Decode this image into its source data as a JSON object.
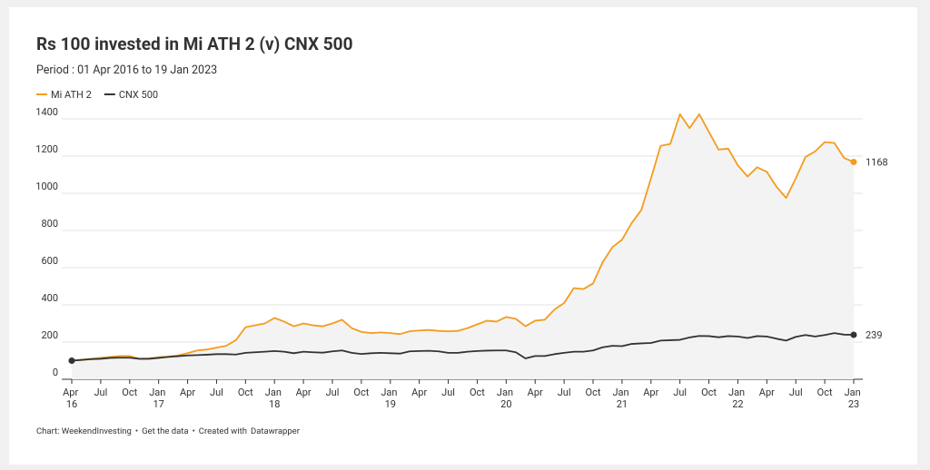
{
  "chart_data": {
    "type": "line",
    "title": "Rs 100 invested in Mi ATH 2 (v) CNX 500",
    "subtitle": "Period : 01 Apr 2016 to 19 Jan 2023",
    "legend": "top-left",
    "grid": true,
    "area_fill": "#f3f3f3",
    "x": [
      "2016-04",
      "2016-05",
      "2016-06",
      "2016-07",
      "2016-08",
      "2016-09",
      "2016-10",
      "2016-11",
      "2016-12",
      "2017-01",
      "2017-02",
      "2017-03",
      "2017-04",
      "2017-05",
      "2017-06",
      "2017-07",
      "2017-08",
      "2017-09",
      "2017-10",
      "2017-11",
      "2017-12",
      "2018-01",
      "2018-02",
      "2018-03",
      "2018-04",
      "2018-05",
      "2018-06",
      "2018-07",
      "2018-08",
      "2018-09",
      "2018-10",
      "2018-11",
      "2018-12",
      "2019-01",
      "2019-02",
      "2019-03",
      "2019-04",
      "2019-05",
      "2019-06",
      "2019-07",
      "2019-08",
      "2019-09",
      "2019-10",
      "2019-11",
      "2019-12",
      "2020-01",
      "2020-02",
      "2020-03",
      "2020-04",
      "2020-05",
      "2020-06",
      "2020-07",
      "2020-08",
      "2020-09",
      "2020-10",
      "2020-11",
      "2020-12",
      "2021-01",
      "2021-02",
      "2021-03",
      "2021-04",
      "2021-05",
      "2021-06",
      "2021-07",
      "2021-08",
      "2021-09",
      "2021-10",
      "2021-11",
      "2021-12",
      "2022-01",
      "2022-02",
      "2022-03",
      "2022-04",
      "2022-05",
      "2022-06",
      "2022-07",
      "2022-08",
      "2022-09",
      "2022-10",
      "2022-11",
      "2022-12",
      "2023-01"
    ],
    "series": [
      {
        "name": "Mi ATH 2",
        "color": "#f39c1f",
        "values": [
          100,
          105,
          110,
          115,
          120,
          125,
          125,
          110,
          112,
          118,
          122,
          128,
          140,
          155,
          160,
          170,
          180,
          210,
          280,
          290,
          300,
          330,
          310,
          285,
          300,
          290,
          285,
          300,
          320,
          275,
          255,
          248,
          252,
          248,
          243,
          258,
          262,
          265,
          260,
          258,
          260,
          275,
          295,
          315,
          310,
          335,
          325,
          285,
          315,
          320,
          375,
          410,
          490,
          485,
          515,
          630,
          710,
          750,
          840,
          910,
          1080,
          1255,
          1265,
          1425,
          1350,
          1425,
          1330,
          1235,
          1240,
          1150,
          1090,
          1140,
          1115,
          1035,
          975,
          1080,
          1195,
          1225,
          1275,
          1270,
          1190,
          1168
        ]
      },
      {
        "name": "CNX 500",
        "color": "#333333",
        "values": [
          100,
          104,
          108,
          110,
          115,
          116,
          116,
          110,
          110,
          115,
          120,
          124,
          128,
          130,
          132,
          135,
          135,
          133,
          142,
          145,
          148,
          152,
          148,
          140,
          148,
          145,
          143,
          150,
          155,
          142,
          136,
          140,
          142,
          140,
          138,
          150,
          152,
          153,
          150,
          142,
          142,
          148,
          152,
          154,
          155,
          155,
          145,
          112,
          125,
          125,
          135,
          142,
          148,
          148,
          155,
          172,
          180,
          178,
          190,
          193,
          195,
          208,
          210,
          212,
          225,
          233,
          232,
          226,
          232,
          230,
          222,
          232,
          230,
          218,
          208,
          228,
          238,
          230,
          238,
          248,
          240,
          239
        ]
      }
    ],
    "ylim": [
      0,
      1400
    ],
    "yticks": [
      0,
      200,
      400,
      600,
      800,
      1000,
      1200,
      1400
    ],
    "xticks": [
      {
        "value": "2016-04",
        "label": "Apr 16"
      },
      {
        "value": "2016-07",
        "label": "Jul"
      },
      {
        "value": "2016-10",
        "label": "Oct"
      },
      {
        "value": "2017-01",
        "label": "Jan 17"
      },
      {
        "value": "2017-04",
        "label": "Apr"
      },
      {
        "value": "2017-07",
        "label": "Jul"
      },
      {
        "value": "2017-10",
        "label": "Oct"
      },
      {
        "value": "2018-01",
        "label": "Jan 18"
      },
      {
        "value": "2018-04",
        "label": "Apr"
      },
      {
        "value": "2018-07",
        "label": "Jul"
      },
      {
        "value": "2018-10",
        "label": "Oct"
      },
      {
        "value": "2019-01",
        "label": "Jan 19"
      },
      {
        "value": "2019-04",
        "label": "Apr"
      },
      {
        "value": "2019-07",
        "label": "Jul"
      },
      {
        "value": "2019-10",
        "label": "Oct"
      },
      {
        "value": "2020-01",
        "label": "Jan 20"
      },
      {
        "value": "2020-04",
        "label": "Apr"
      },
      {
        "value": "2020-07",
        "label": "Jul"
      },
      {
        "value": "2020-10",
        "label": "Oct"
      },
      {
        "value": "2021-01",
        "label": "Jan 21"
      },
      {
        "value": "2021-04",
        "label": "Apr"
      },
      {
        "value": "2021-07",
        "label": "Jul"
      },
      {
        "value": "2021-10",
        "label": "Oct"
      },
      {
        "value": "2022-01",
        "label": "Jan 22"
      },
      {
        "value": "2022-04",
        "label": "Apr"
      },
      {
        "value": "2022-07",
        "label": "Jul"
      },
      {
        "value": "2022-10",
        "label": "Oct"
      },
      {
        "value": "2023-01",
        "label": "Jan 23"
      }
    ],
    "footer": {
      "source": "Chart: WeekendInvesting",
      "separator": "•",
      "data_link": "Get the data",
      "created": "Created with",
      "tool_link": "Datawrapper",
      "link_color": "#1d81a2"
    }
  }
}
